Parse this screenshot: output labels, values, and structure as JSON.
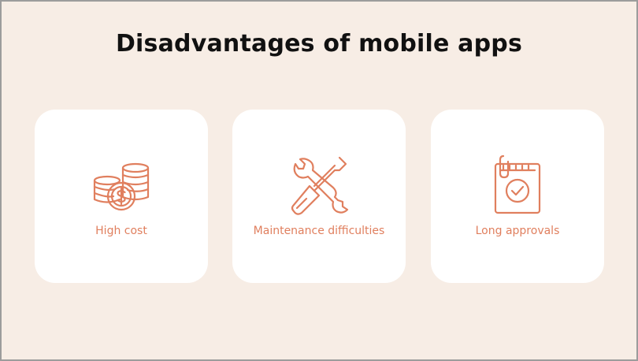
{
  "title": "Disadvantages of mobile apps",
  "accent_color": "#e07f5e",
  "background_color": "#f7ede5",
  "cards": [
    {
      "label": "High cost",
      "icon": "coins-dollar-icon"
    },
    {
      "label": "Maintenance difficulties",
      "icon": "wrench-screwdriver-icon"
    },
    {
      "label": "Long approvals",
      "icon": "clipboard-check-icon"
    }
  ]
}
